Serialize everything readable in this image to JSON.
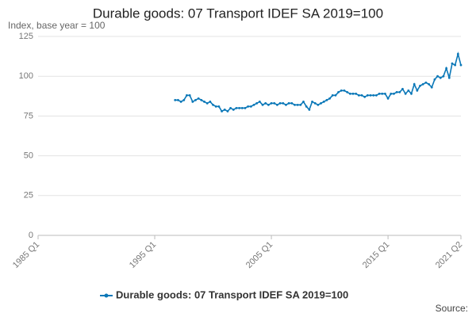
{
  "chart_data": {
    "type": "line",
    "title": "Durable goods: 07 Transport IDEF SA 2019=100",
    "subtitle": "Index, base year = 100",
    "source": "Source:",
    "categories": [
      "1985 Q1",
      null,
      null,
      null,
      null,
      null,
      null,
      null,
      null,
      null,
      null,
      null,
      null,
      null,
      null,
      null,
      null,
      null,
      null,
      null,
      null,
      null,
      null,
      null,
      null,
      null,
      null,
      null,
      null,
      null,
      null,
      null,
      null,
      null,
      null,
      null,
      null,
      null,
      null,
      null,
      "1995 Q1",
      null,
      null,
      null,
      null,
      null,
      null,
      null,
      null,
      null,
      null,
      null,
      null,
      null,
      null,
      null,
      null,
      null,
      null,
      null,
      null,
      null,
      null,
      null,
      null,
      null,
      null,
      null,
      null,
      null,
      null,
      null,
      null,
      null,
      null,
      null,
      null,
      null,
      null,
      null,
      "2005 Q1",
      null,
      null,
      null,
      null,
      null,
      null,
      null,
      null,
      null,
      null,
      null,
      null,
      null,
      null,
      null,
      null,
      null,
      null,
      null,
      null,
      null,
      null,
      null,
      null,
      null,
      null,
      null,
      null,
      null,
      null,
      null,
      null,
      null,
      null,
      null,
      null,
      null,
      null,
      null,
      "2015 Q1",
      null,
      null,
      null,
      null,
      null,
      null,
      null,
      null,
      null,
      null,
      null,
      null,
      null,
      null,
      null,
      null,
      null,
      null,
      null,
      null,
      null,
      null,
      null,
      null,
      "2021 Q2"
    ],
    "series": [
      {
        "name": "Durable goods: 07 Transport IDEF SA 2019=100",
        "color": "#0b78b8",
        "values": [
          null,
          null,
          null,
          null,
          null,
          null,
          null,
          null,
          null,
          null,
          null,
          null,
          null,
          null,
          null,
          null,
          null,
          null,
          null,
          null,
          null,
          null,
          null,
          null,
          null,
          null,
          null,
          null,
          null,
          null,
          null,
          null,
          null,
          null,
          null,
          null,
          null,
          null,
          null,
          null,
          null,
          null,
          null,
          null,
          null,
          null,
          null,
          85,
          85,
          84,
          85,
          88,
          88,
          84,
          85,
          86,
          85,
          84,
          83,
          84,
          82,
          81,
          81,
          78,
          79,
          78,
          80,
          79,
          80,
          80,
          80,
          80,
          81,
          81,
          82,
          83,
          84,
          82,
          83,
          82,
          83,
          83,
          82,
          83,
          83,
          82,
          83,
          83,
          82,
          82,
          82,
          84,
          81,
          79,
          84,
          83,
          82,
          83,
          84,
          85,
          86,
          88,
          88,
          90,
          91,
          91,
          90,
          89,
          89,
          89,
          88,
          88,
          87,
          88,
          88,
          88,
          88,
          89,
          89,
          89,
          86,
          89,
          89,
          90,
          90,
          92,
          89,
          91,
          89,
          95,
          91,
          94,
          95,
          96,
          95,
          93,
          98,
          100,
          99,
          100,
          105,
          99,
          108,
          107,
          114,
          107
        ]
      }
    ],
    "ylim": [
      0,
      125
    ],
    "yticks": [
      0,
      25,
      50,
      75,
      100,
      125
    ],
    "grid": true
  }
}
